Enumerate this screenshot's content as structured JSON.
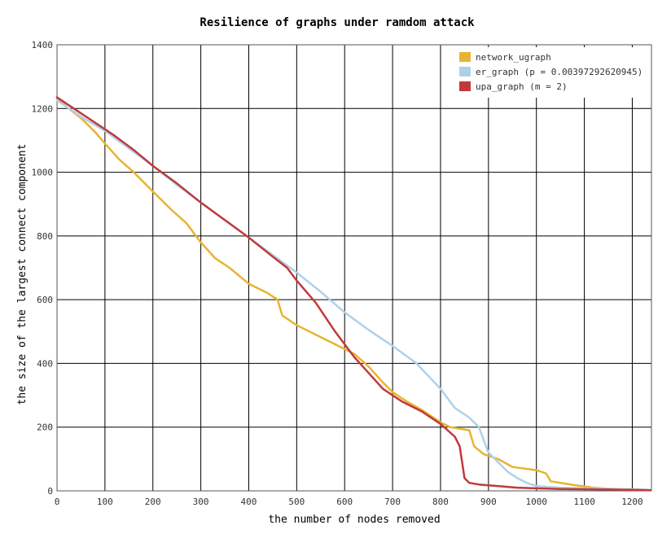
{
  "chart_data": {
    "type": "line",
    "title": "Resilience of graphs under ramdom attack",
    "xlabel": "the number of nodes removed",
    "ylabel": "the size of the largest connect component",
    "xlim": [
      0,
      1240
    ],
    "ylim": [
      0,
      1400
    ],
    "xticks": [
      0,
      100,
      200,
      300,
      400,
      500,
      600,
      700,
      800,
      900,
      1000,
      1100,
      1200
    ],
    "yticks": [
      0,
      200,
      400,
      600,
      800,
      1000,
      1200,
      1400
    ],
    "grid": true,
    "legend_position": "top-right",
    "series": [
      {
        "name": "network_ugraph",
        "color": "#e6b530",
        "x": [
          0,
          20,
          50,
          80,
          100,
          130,
          160,
          200,
          240,
          270,
          300,
          330,
          360,
          400,
          440,
          460,
          470,
          500,
          540,
          580,
          620,
          650,
          680,
          700,
          730,
          760,
          800,
          820,
          860,
          870,
          890,
          920,
          950,
          1000,
          1020,
          1030,
          1080,
          1120,
          1160,
          1200,
          1239
        ],
        "y": [
          1235,
          1205,
          1170,
          1125,
          1090,
          1040,
          1000,
          940,
          880,
          840,
          780,
          730,
          700,
          650,
          620,
          600,
          550,
          520,
          490,
          460,
          430,
          390,
          340,
          310,
          280,
          255,
          215,
          200,
          190,
          140,
          115,
          100,
          75,
          65,
          55,
          30,
          18,
          10,
          6,
          4,
          2
        ]
      },
      {
        "name": "er_graph (p = 0.00397292620945)",
        "color": "#aed1ea",
        "x": [
          0,
          30,
          60,
          100,
          150,
          200,
          250,
          300,
          350,
          400,
          450,
          500,
          550,
          600,
          650,
          700,
          750,
          800,
          830,
          860,
          880,
          900,
          920,
          940,
          960,
          980,
          1000,
          1050,
          1100,
          1200,
          1239
        ],
        "y": [
          1225,
          1195,
          1165,
          1130,
          1075,
          1020,
          960,
          905,
          850,
          795,
          740,
          685,
          625,
          560,
          505,
          455,
          400,
          320,
          260,
          230,
          200,
          120,
          90,
          60,
          40,
          25,
          15,
          10,
          8,
          5,
          3
        ]
      },
      {
        "name": "upa_graph (m = 2)",
        "color": "#c03a3a",
        "x": [
          0,
          40,
          80,
          120,
          160,
          200,
          250,
          300,
          350,
          400,
          450,
          480,
          500,
          540,
          580,
          620,
          650,
          680,
          720,
          760,
          800,
          830,
          840,
          845,
          850,
          860,
          880,
          920,
          960,
          1000,
          1050,
          1100,
          1150,
          1200,
          1239
        ],
        "y": [
          1235,
          1195,
          1155,
          1115,
          1070,
          1020,
          965,
          905,
          850,
          795,
          735,
          700,
          660,
          590,
          500,
          420,
          370,
          320,
          280,
          250,
          210,
          170,
          140,
          90,
          40,
          25,
          20,
          15,
          10,
          8,
          6,
          5,
          4,
          3,
          2
        ]
      }
    ]
  }
}
